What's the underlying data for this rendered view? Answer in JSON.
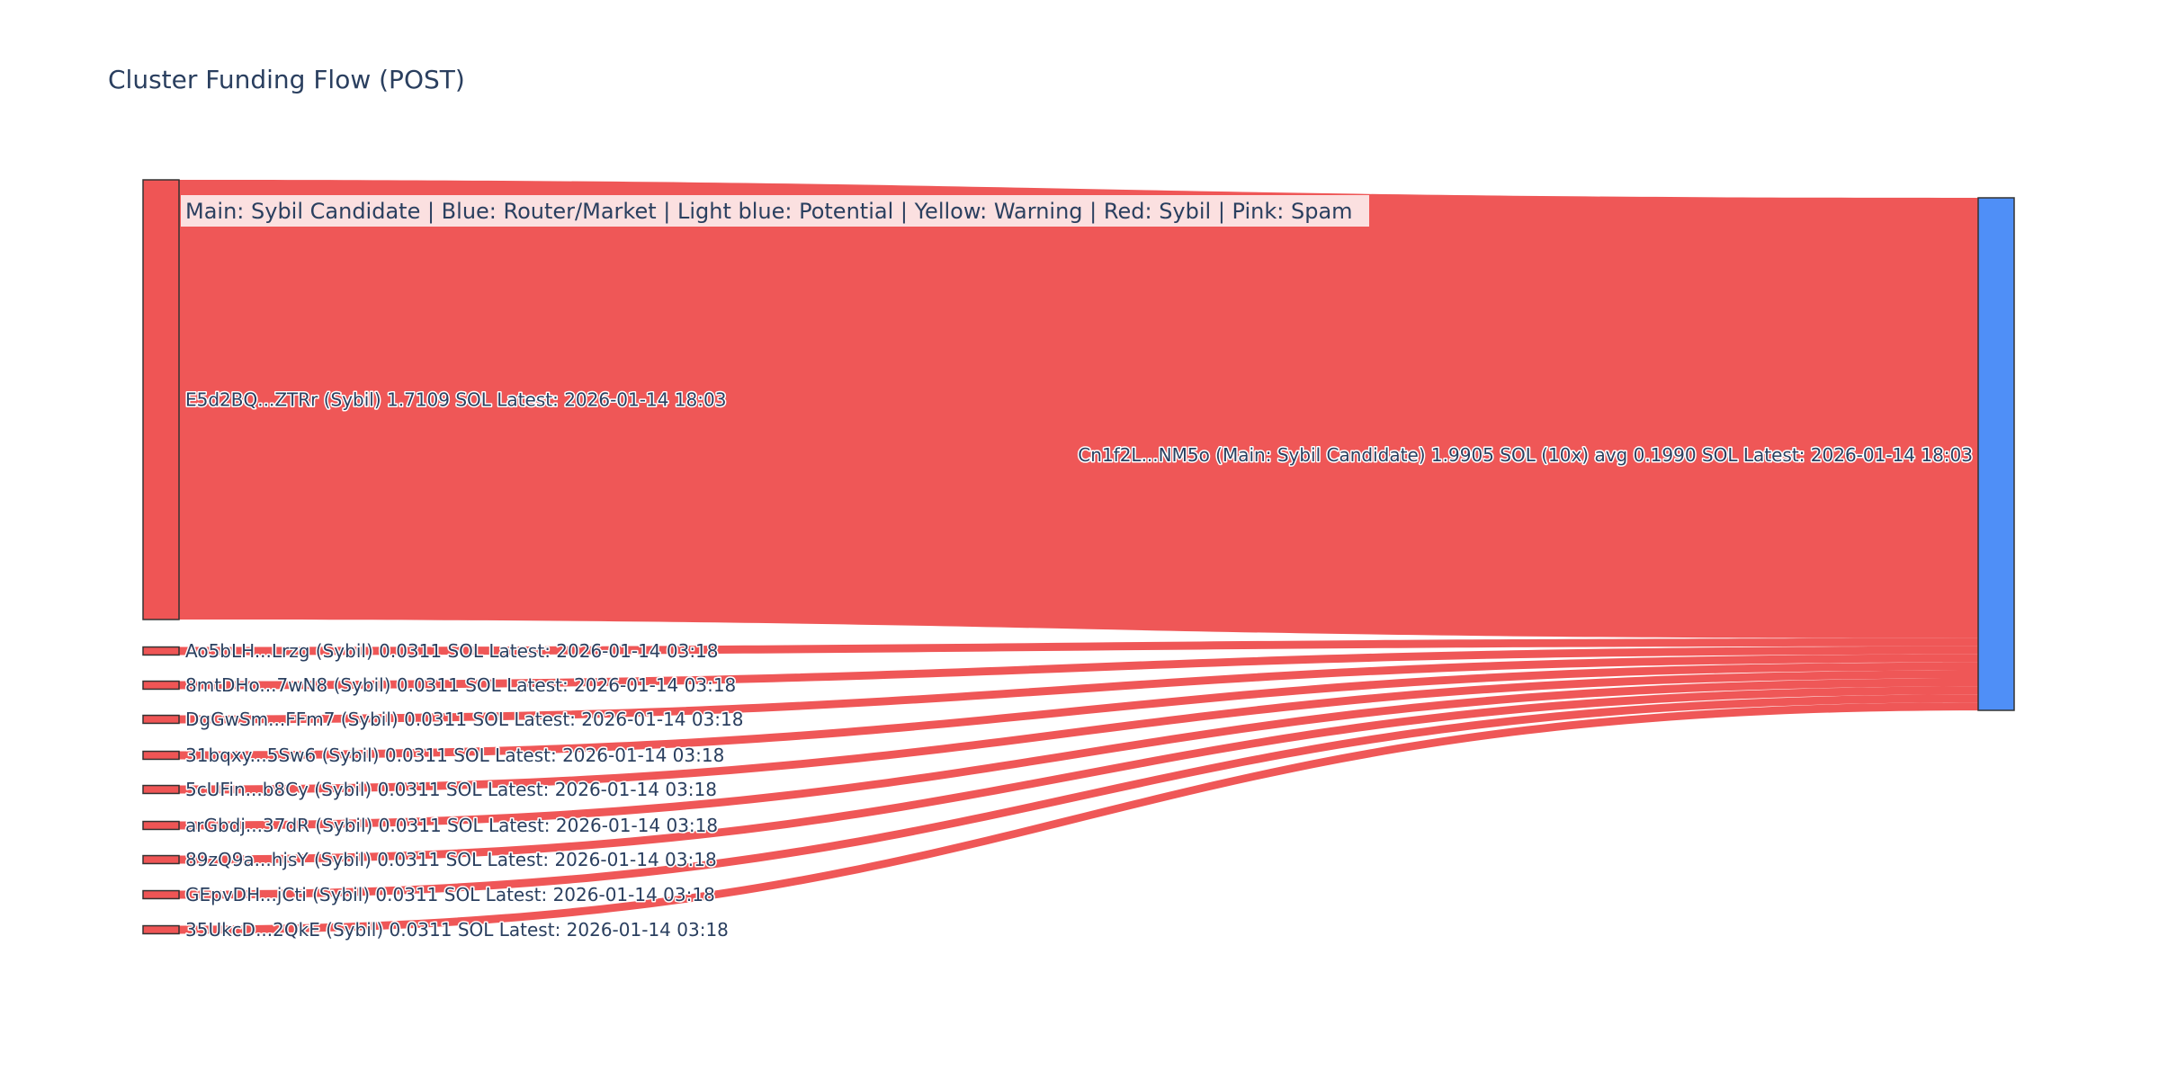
{
  "chart_data": {
    "type": "sankey",
    "title": "Cluster Funding Flow (POST)",
    "annotation": "Main: Sybil Candidate  |  Blue: Router/Market | Light blue: Potential | Yellow: Warning | Red: Sybil | Pink: Spam",
    "target": {
      "label": "Cn1f2L...NM5o (Main: Sybil Candidate) 1.9905 SOL (10x) avg 0.1990 SOL Latest: 2026-01-14 18:03",
      "value": 1.9905,
      "color": "#4f8ff7"
    },
    "sources": [
      {
        "label": "E5d2BQ...ZTRr (Sybil) 1.7109 SOL Latest: 2026-01-14 18:03",
        "value": 1.7109
      },
      {
        "label": "Ao5bLH...Lrzg (Sybil) 0.0311 SOL Latest: 2026-01-14 03:18",
        "value": 0.0311
      },
      {
        "label": "8mtDHo...7wN8 (Sybil) 0.0311 SOL Latest: 2026-01-14 03:18",
        "value": 0.0311
      },
      {
        "label": "DgGwSm...FFm7 (Sybil) 0.0311 SOL Latest: 2026-01-14 03:18",
        "value": 0.0311
      },
      {
        "label": "31bqxy...5Sw6 (Sybil) 0.0311 SOL Latest: 2026-01-14 03:18",
        "value": 0.0311
      },
      {
        "label": "5cUFin...b8Cy (Sybil) 0.0311 SOL Latest: 2026-01-14 03:18",
        "value": 0.0311
      },
      {
        "label": "arGbdj...37dR (Sybil) 0.0311 SOL Latest: 2026-01-14 03:18",
        "value": 0.0311
      },
      {
        "label": "89zQ9a...hjsY (Sybil) 0.0311 SOL Latest: 2026-01-14 03:18",
        "value": 0.0311
      },
      {
        "label": "GEpvDH...jCti (Sybil) 0.0311 SOL Latest: 2026-01-14 03:18",
        "value": 0.0311
      },
      {
        "label": "35UkcD...2QkE (Sybil) 0.0311 SOL Latest: 2026-01-14 03:18",
        "value": 0.0311
      }
    ],
    "colors": {
      "sybil": "#ef5555",
      "link": "#ef5757",
      "legend_bg": "#fbe0e0"
    }
  }
}
